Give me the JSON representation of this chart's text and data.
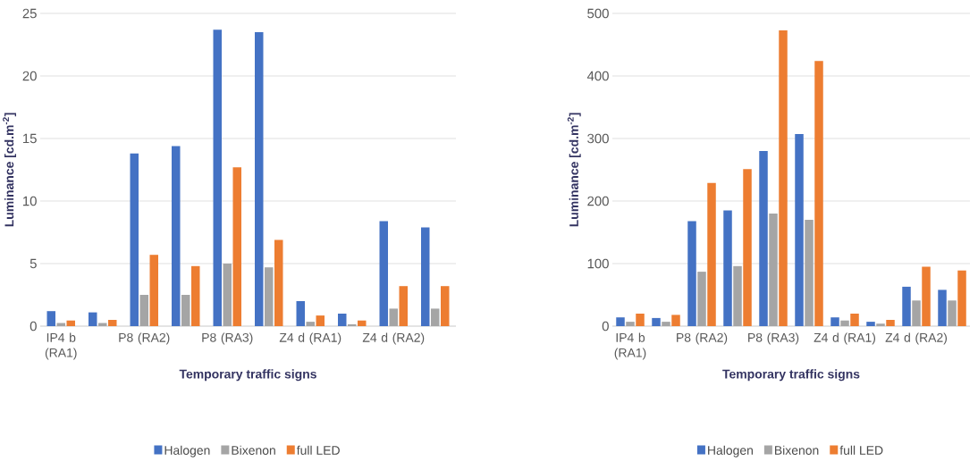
{
  "chart_data": [
    {
      "type": "bar",
      "xlabel": "Temporary traffic signs",
      "ylabel": "Luminance [cd.m$^{-2}$]",
      "categories": [
        "IP4 b (RA1)",
        null,
        "P8 (RA2)",
        null,
        "P8 (RA3)",
        null,
        "Z4 d (RA1)",
        null,
        "Z4 d (RA2)",
        null
      ],
      "series": [
        {
          "name": "Halogen",
          "color": "#4472c4",
          "values": [
            1.2,
            1.1,
            13.8,
            14.4,
            23.7,
            23.5,
            2.0,
            1.0,
            8.4,
            7.9
          ]
        },
        {
          "name": "Bixenon",
          "color": "#a5a5a5",
          "values": [
            0.25,
            0.25,
            2.5,
            2.5,
            5.0,
            4.7,
            0.35,
            0.15,
            1.4,
            1.4
          ]
        },
        {
          "name": "full LED",
          "color": "#ed7d31",
          "values": [
            0.45,
            0.5,
            5.7,
            4.8,
            12.7,
            6.9,
            0.85,
            0.45,
            3.2,
            3.2
          ]
        }
      ],
      "ylim": [
        0,
        25
      ],
      "yticks": [
        0,
        5,
        10,
        15,
        20,
        25
      ],
      "grid": "y",
      "legend": "bottom"
    },
    {
      "type": "bar",
      "xlabel": "Temporary traffic signs",
      "ylabel": "Luminance [cd.m$^{-2}$]",
      "categories": [
        "IP4 b (RA1)",
        null,
        "P8 (RA2)",
        null,
        "P8 (RA3)",
        null,
        "Z4 d (RA1)",
        null,
        "Z4 d (RA2)",
        null
      ],
      "series": [
        {
          "name": "Halogen",
          "color": "#4472c4",
          "values": [
            14,
            13,
            168,
            185,
            280,
            307,
            14,
            7,
            63,
            58
          ]
        },
        {
          "name": "Bixenon",
          "color": "#a5a5a5",
          "values": [
            7,
            7,
            87,
            96,
            180,
            170,
            9,
            4,
            41,
            41
          ]
        },
        {
          "name": "full LED",
          "color": "#ed7d31",
          "values": [
            20,
            18,
            229,
            251,
            473,
            424,
            20,
            10,
            95,
            89
          ]
        }
      ],
      "ylim": [
        0,
        500
      ],
      "yticks": [
        0,
        100,
        200,
        300,
        400,
        500
      ],
      "grid": "y",
      "legend": "bottom"
    }
  ]
}
